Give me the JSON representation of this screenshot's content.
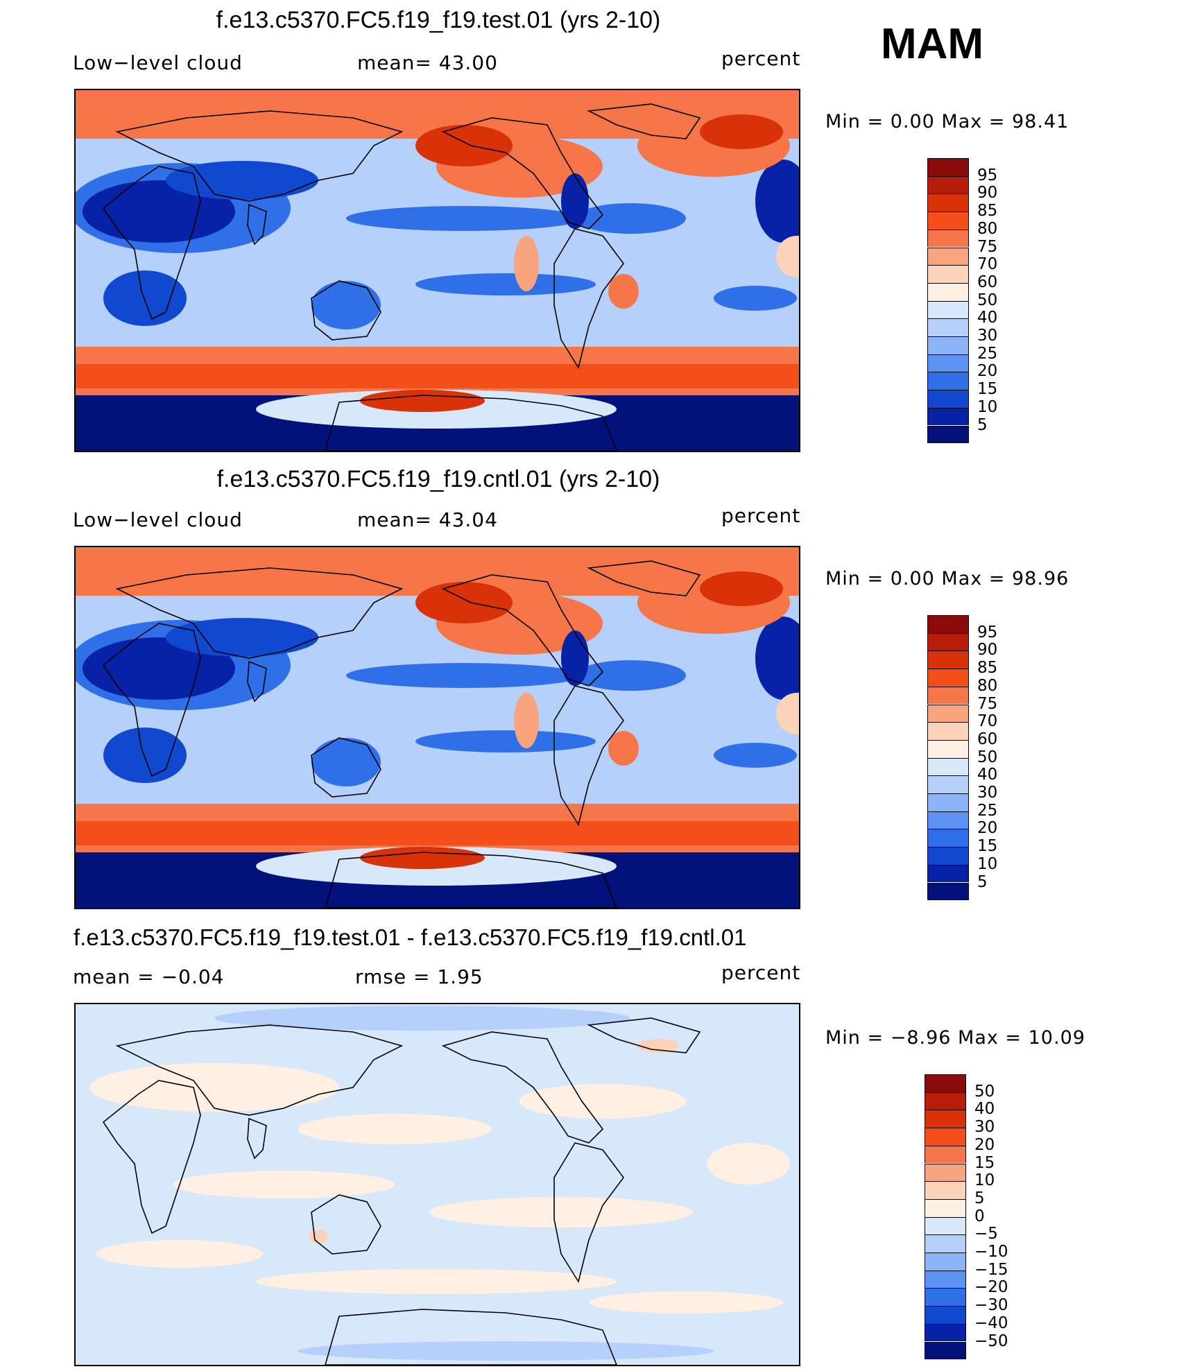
{
  "season": "MAM",
  "panels": [
    {
      "title": "f.e13.c5370.FC5.f19_f19.test.01 (yrs 2-10)",
      "left_label": "Low−level cloud",
      "center_label": "mean=   43.00",
      "right_label": "percent",
      "minmax": "Min =     0.00  Max =    98.41",
      "colorbar_ticks": [
        "95",
        "90",
        "85",
        "80",
        "75",
        "70",
        "60",
        "50",
        "40",
        "30",
        "25",
        "20",
        "15",
        "10",
        "5"
      ],
      "colorbar_colors": [
        "#8b0a0a",
        "#b81d0b",
        "#d93108",
        "#f44e1a",
        "#f6764a",
        "#f9a47f",
        "#fcd3b8",
        "#fff0e3",
        "#d8e8fb",
        "#b5d0fa",
        "#8cb5f7",
        "#5e92f2",
        "#2f6fe8",
        "#1048cf",
        "#0722a6",
        "#03117a"
      ],
      "field": "absolute"
    },
    {
      "title": "f.e13.c5370.FC5.f19_f19.cntl.01 (yrs 2-10)",
      "left_label": "Low−level cloud",
      "center_label": "mean=   43.04",
      "right_label": "percent",
      "minmax": "Min =     0.00  Max =    98.96",
      "colorbar_ticks": [
        "95",
        "90",
        "85",
        "80",
        "75",
        "70",
        "60",
        "50",
        "40",
        "30",
        "25",
        "20",
        "15",
        "10",
        "5"
      ],
      "colorbar_colors": [
        "#8b0a0a",
        "#b81d0b",
        "#d93108",
        "#f44e1a",
        "#f6764a",
        "#f9a47f",
        "#fcd3b8",
        "#fff0e3",
        "#d8e8fb",
        "#b5d0fa",
        "#8cb5f7",
        "#5e92f2",
        "#2f6fe8",
        "#1048cf",
        "#0722a6",
        "#03117a"
      ],
      "field": "absolute"
    },
    {
      "title": "f.e13.c5370.FC5.f19_f19.test.01 - f.e13.c5370.FC5.f19_f19.cntl.01",
      "left_label": "mean  =   −0.04",
      "center_label": "rmse  =     1.95",
      "right_label": "percent",
      "minmax": "Min =   −8.96  Max =    10.09",
      "colorbar_ticks": [
        "50",
        "40",
        "30",
        "20",
        "15",
        "10",
        "5",
        "0",
        "−5",
        "−10",
        "−15",
        "−20",
        "−30",
        "−40",
        "−50"
      ],
      "colorbar_colors": [
        "#8b0a0a",
        "#b81d0b",
        "#d93108",
        "#f44e1a",
        "#f6764a",
        "#f9a47f",
        "#fcd3b8",
        "#fff0e3",
        "#d8e8fb",
        "#b5d0fa",
        "#8cb5f7",
        "#5e92f2",
        "#2f6fe8",
        "#1048cf",
        "#0722a6",
        "#03117a"
      ],
      "field": "difference"
    }
  ]
}
